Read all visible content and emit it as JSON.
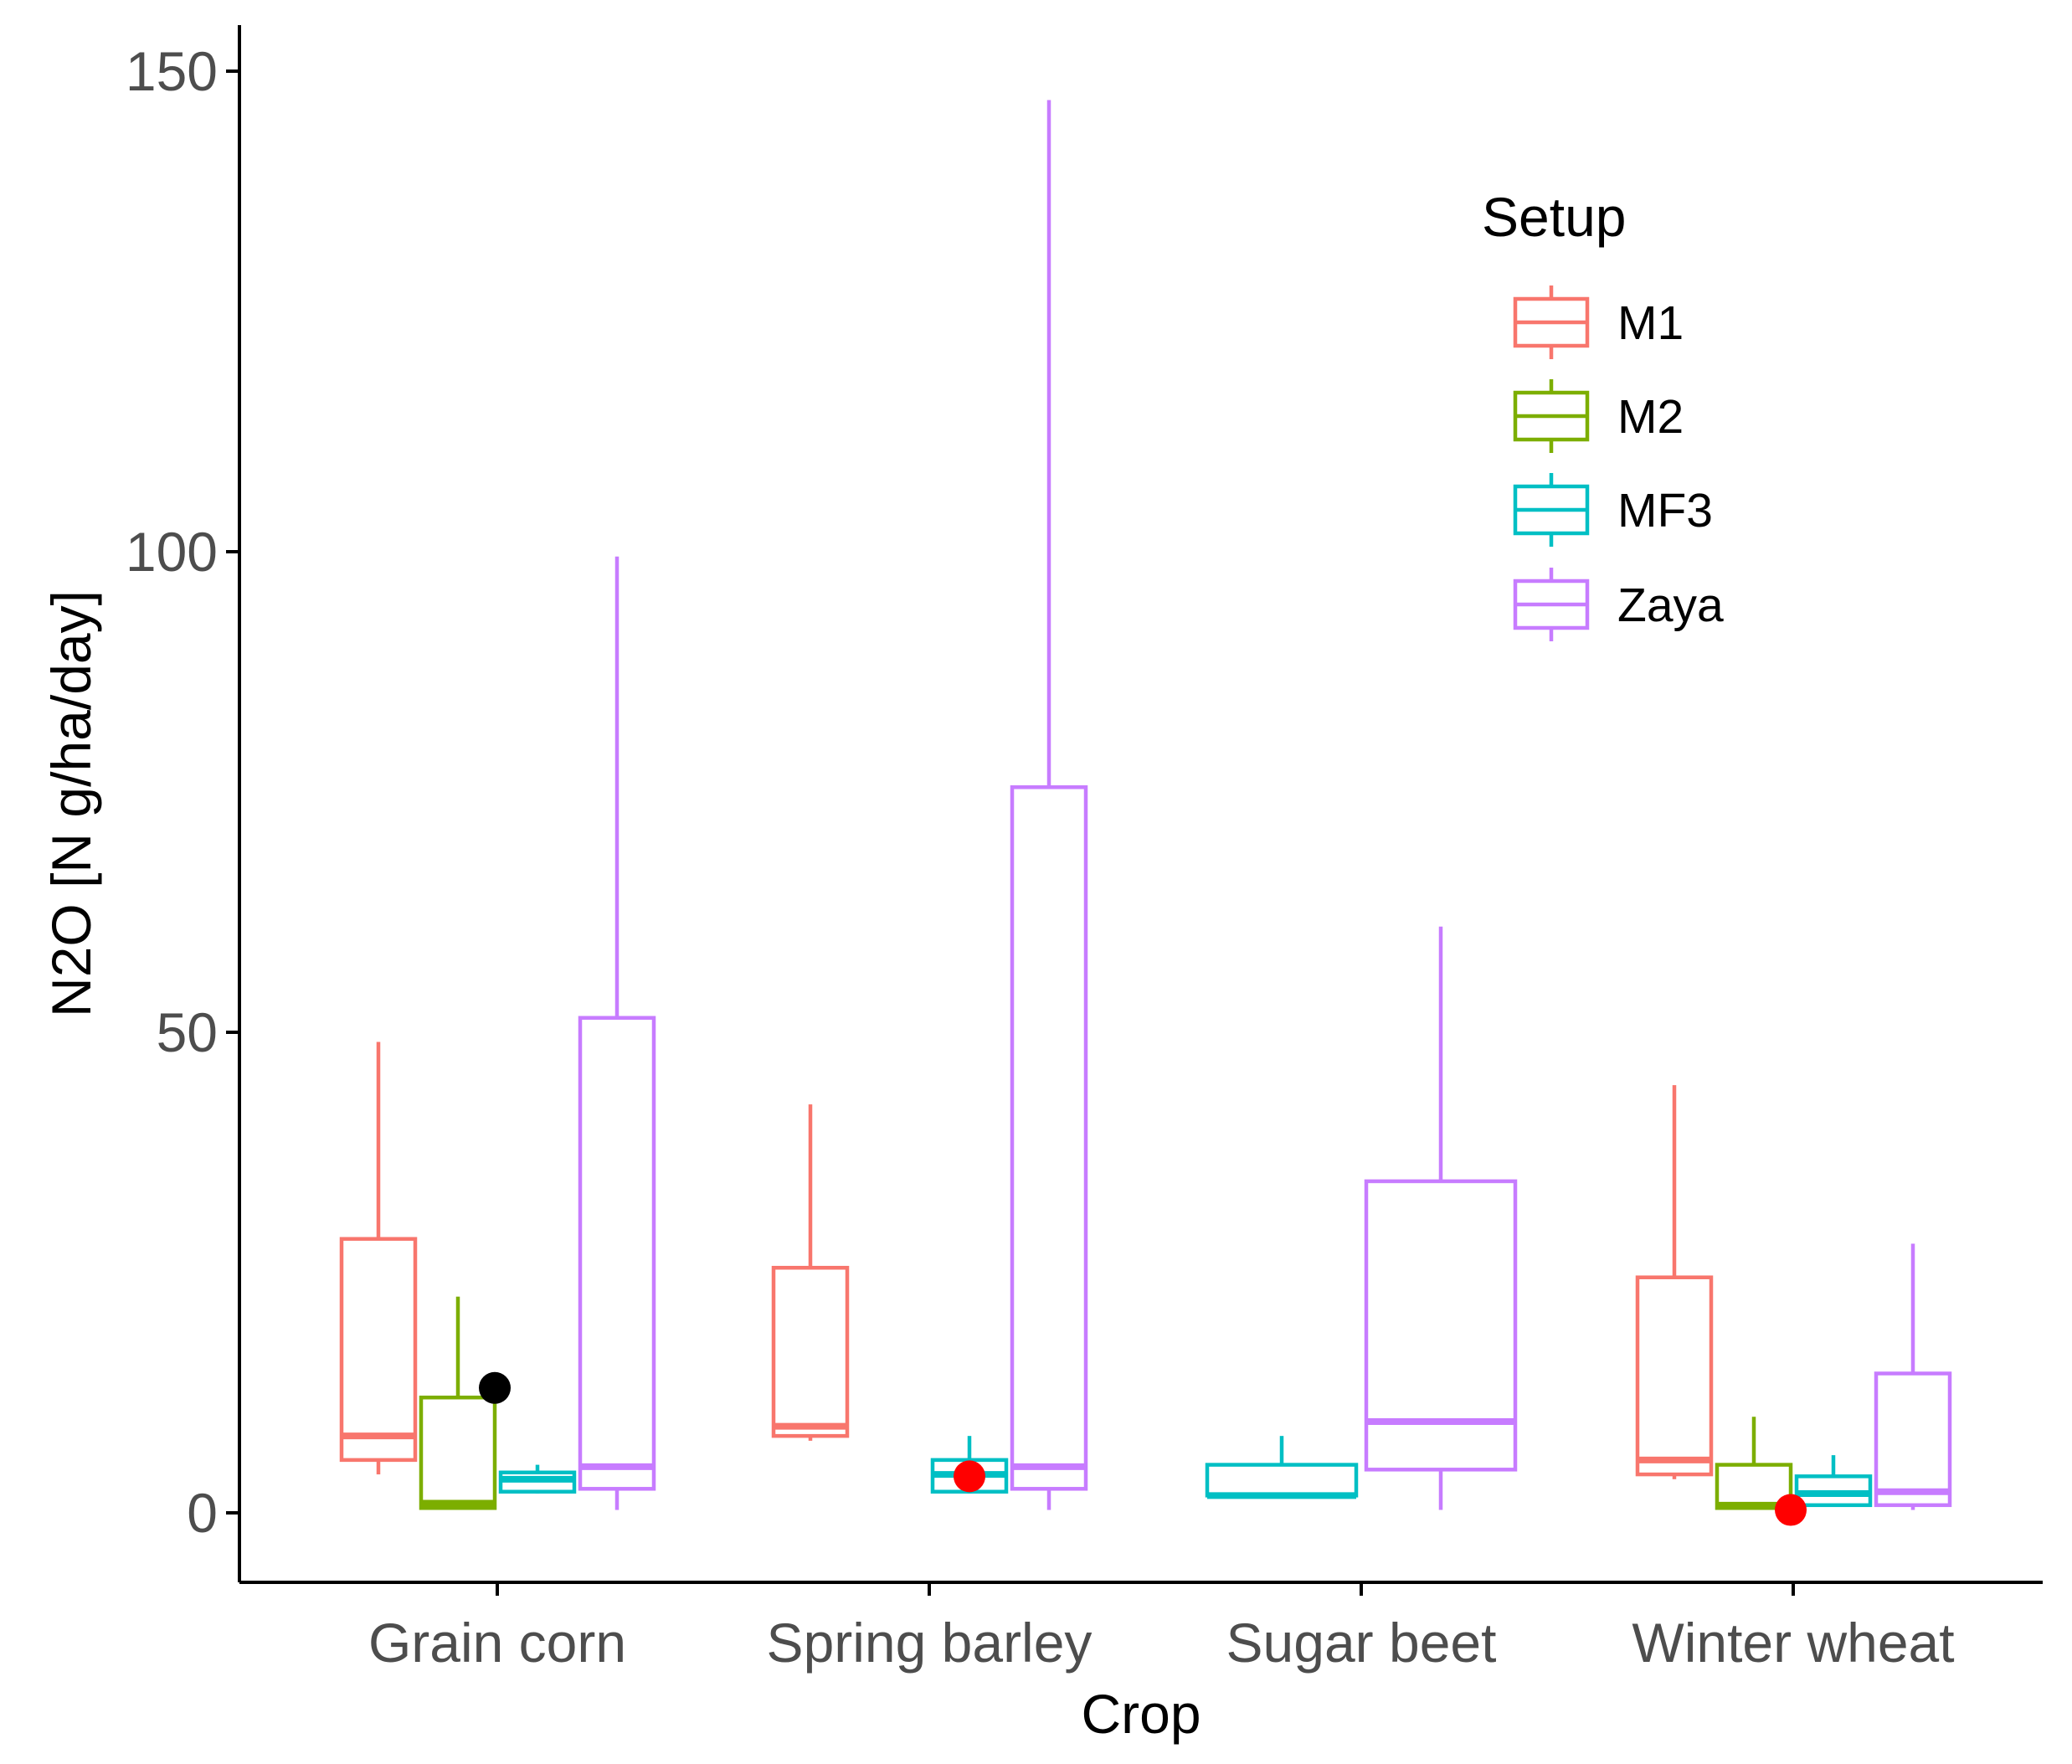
{
  "chart_data": {
    "type": "boxplot",
    "title": "",
    "xlabel": "Crop",
    "ylabel": "N2O [N g/ha/day]",
    "ylim": [
      -15,
      160
    ],
    "yticks": [
      0,
      50,
      100,
      150
    ],
    "categories": [
      "Grain corn",
      "Spring barley",
      "Sugar beet",
      "Winter wheat"
    ],
    "legend": {
      "title": "Setup",
      "position": "top-right"
    },
    "series": [
      {
        "name": "M1",
        "color": "#F8766D",
        "boxes": [
          {
            "category": "Grain corn",
            "min": 4,
            "q1": 5.5,
            "median": 8,
            "q3": 28.5,
            "max": 49
          },
          {
            "category": "Spring barley",
            "min": 7.5,
            "q1": 8,
            "median": 9,
            "q3": 25.5,
            "max": 42.5
          },
          null,
          {
            "category": "Winter wheat",
            "min": 3.5,
            "q1": 4,
            "median": 5.5,
            "q3": 24.5,
            "max": 44.5
          }
        ]
      },
      {
        "name": "M2",
        "color": "#7CAE00",
        "boxes": [
          {
            "category": "Grain corn",
            "min": 0.5,
            "q1": 0.5,
            "median": 1,
            "q3": 12,
            "max": 22.5
          },
          null,
          null,
          {
            "category": "Winter wheat",
            "min": 0.5,
            "q1": 0.5,
            "median": 0.8,
            "q3": 5,
            "max": 10
          }
        ]
      },
      {
        "name": "MF3",
        "color": "#00BFC4",
        "boxes": [
          {
            "category": "Grain corn",
            "min": 2,
            "q1": 2.2,
            "median": 3.5,
            "q3": 4.2,
            "max": 5
          },
          {
            "category": "Spring barley",
            "min": 2,
            "q1": 2.2,
            "median": 4,
            "q3": 5.5,
            "max": 8
          },
          {
            "category": "Sugar beet",
            "min": 1.8,
            "q1": 1.8,
            "median": 1.8,
            "q3": 5,
            "max": 8
          },
          {
            "category": "Winter wheat",
            "min": 0.8,
            "q1": 0.8,
            "median": 2,
            "q3": 3.8,
            "max": 6
          }
        ]
      },
      {
        "name": "Zaya",
        "color": "#C77CFF",
        "boxes": [
          {
            "category": "Grain corn",
            "min": 0.3,
            "q1": 2.5,
            "median": 4.8,
            "q3": 51.5,
            "max": 99.5
          },
          {
            "category": "Spring barley",
            "min": 0.3,
            "q1": 2.5,
            "median": 4.8,
            "q3": 75.5,
            "max": 147
          },
          {
            "category": "Sugar beet",
            "min": 0.3,
            "q1": 4.5,
            "median": 9.5,
            "q3": 34.5,
            "max": 61
          },
          {
            "category": "Winter wheat",
            "min": 0.3,
            "q1": 0.8,
            "median": 2.2,
            "q3": 14.5,
            "max": 28
          }
        ]
      }
    ],
    "points": [
      {
        "category": "Grain corn",
        "slot": "M2-right",
        "value": 13,
        "color": "#000000"
      },
      {
        "category": "Spring barley",
        "slot": "MF3",
        "value": 3.8,
        "color": "#FF0000"
      },
      {
        "category": "Winter wheat",
        "slot": "M2-right",
        "value": 0.3,
        "color": "#FF0000"
      }
    ]
  }
}
